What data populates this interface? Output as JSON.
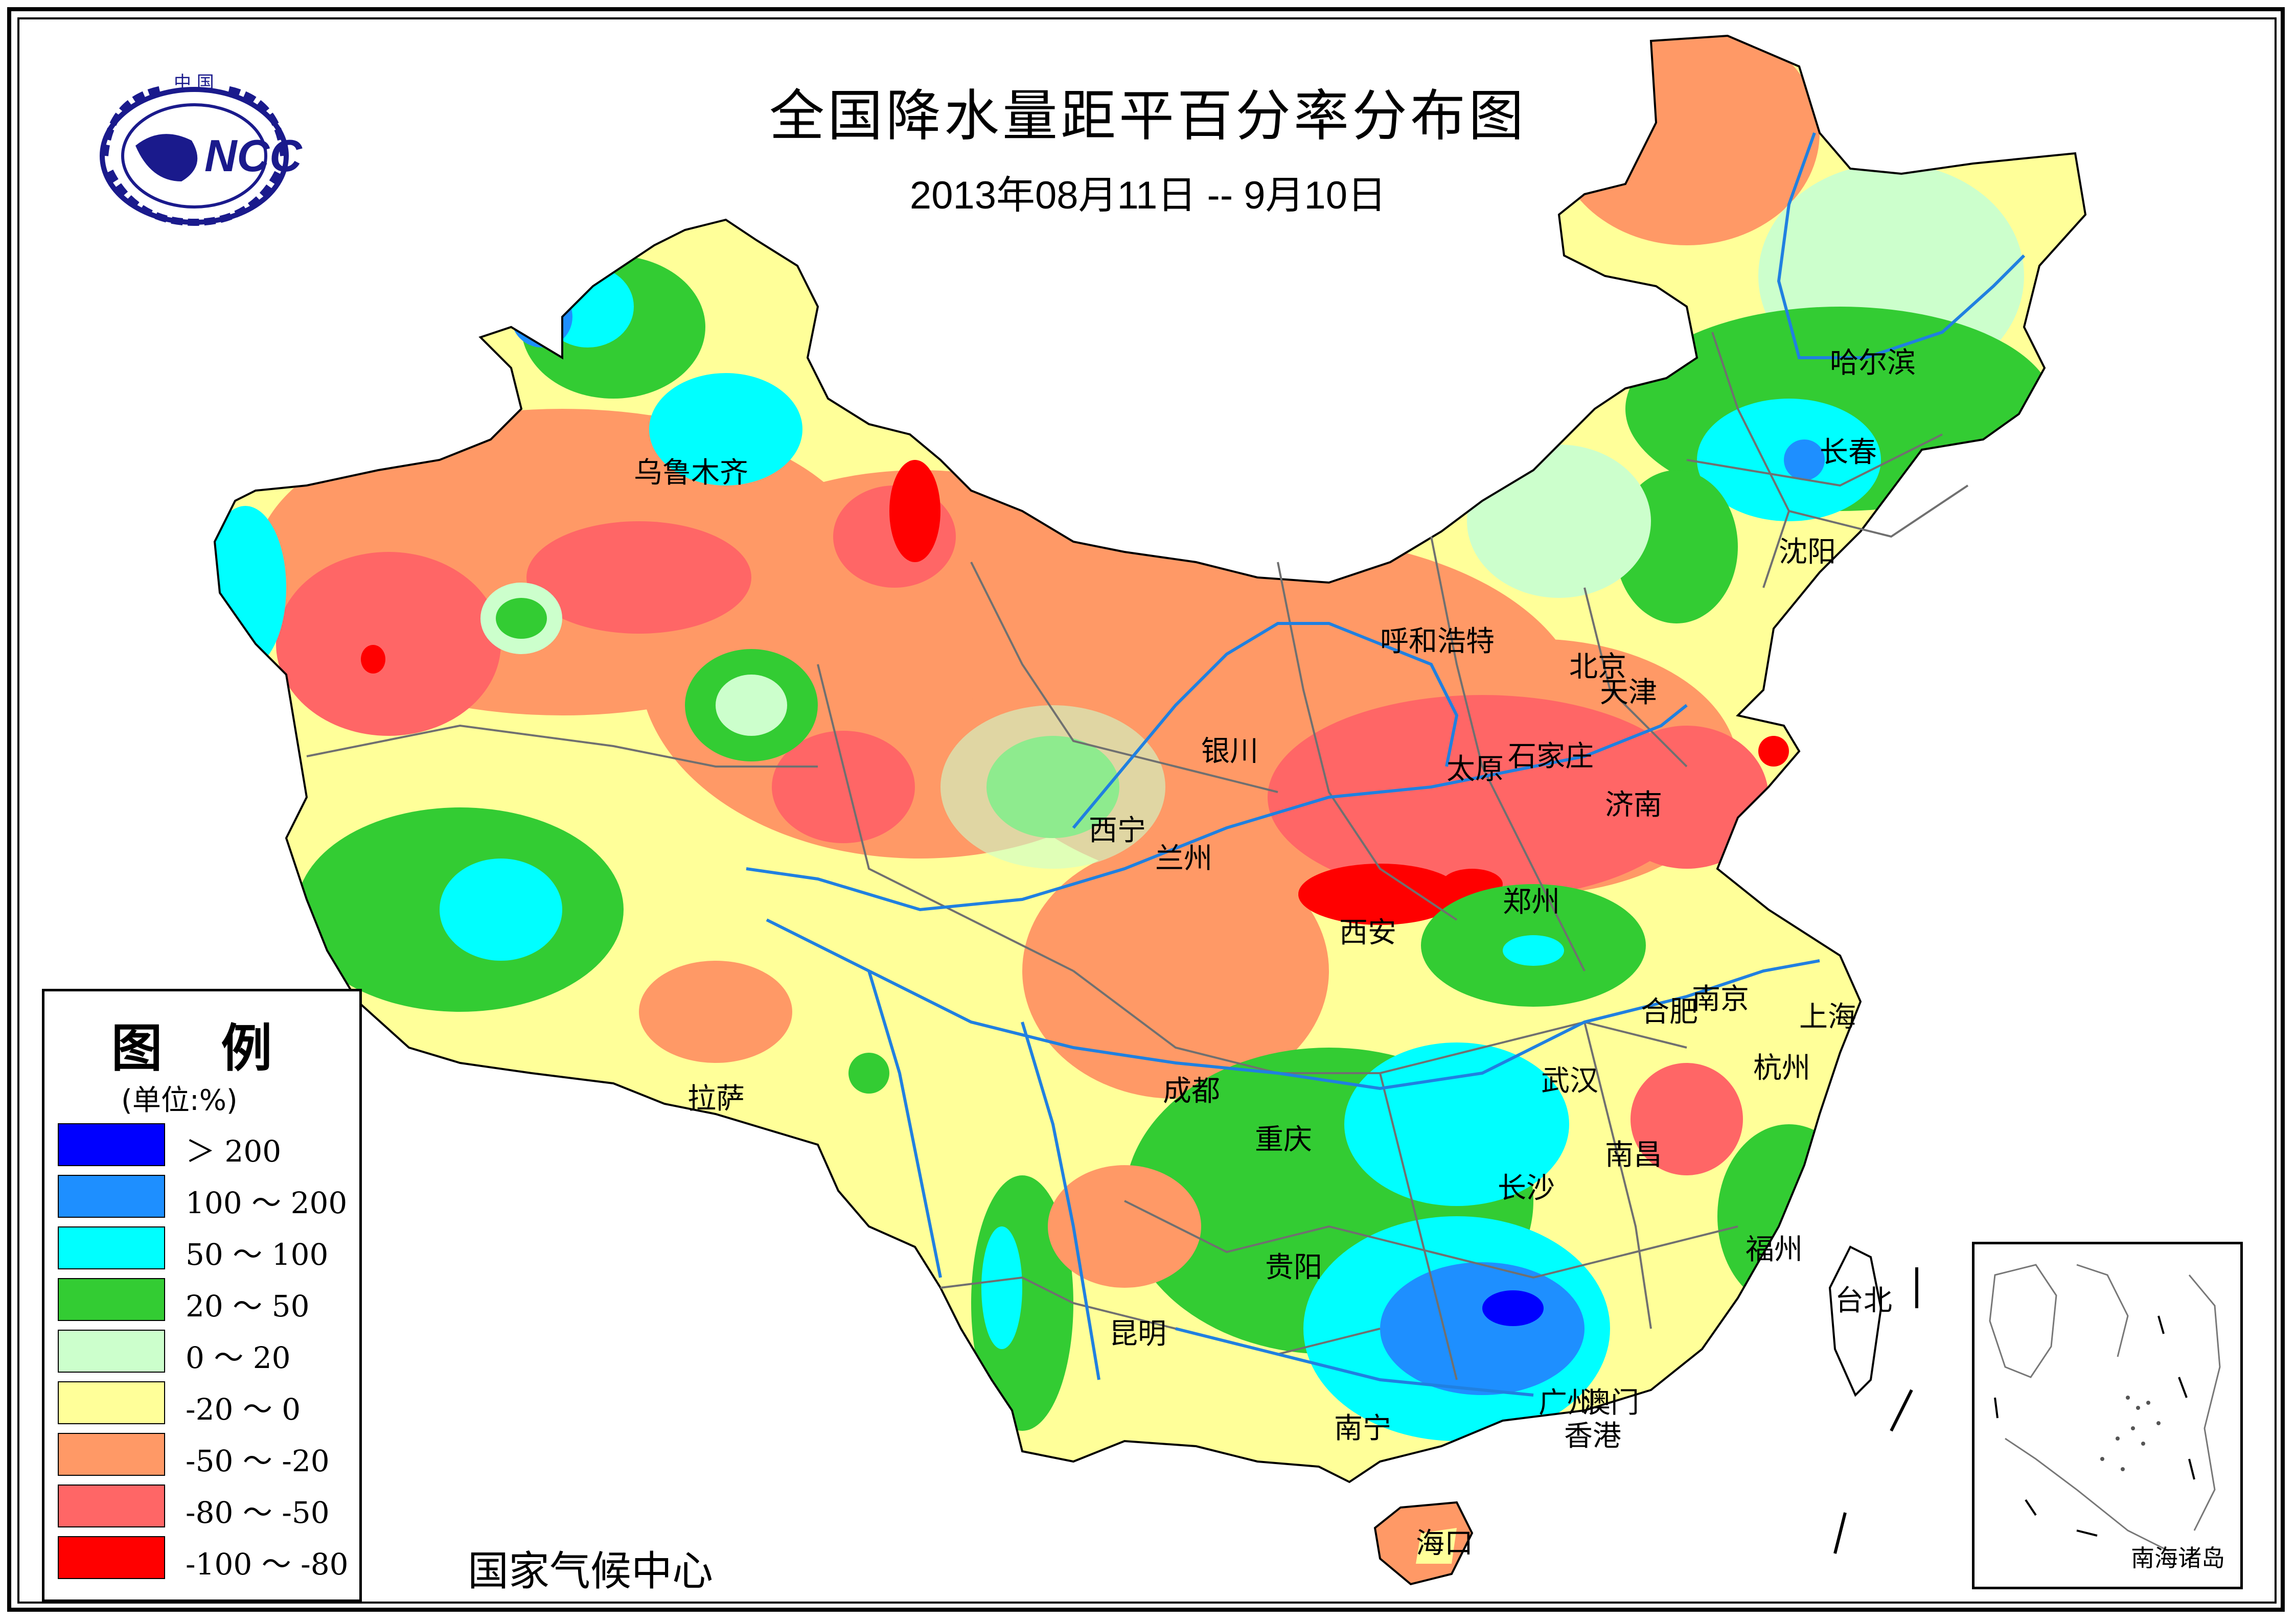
{
  "header": {
    "title": "全国降水量距平百分率分布图",
    "date_range": "2013年08月11日 -- 9月10日"
  },
  "logo": {
    "org_label_top": "中 国",
    "acronym": "NCC",
    "icon": "ncc-emblem-icon"
  },
  "legend": {
    "title": "图 例",
    "unit": "(单位:%)",
    "items": [
      {
        "label": "＞ 200",
        "color": "#0000ff"
      },
      {
        "label": "100 ～ 200",
        "color": "#1e8fff"
      },
      {
        "label": "50 ～ 100",
        "color": "#00ffff"
      },
      {
        "label": "20 ～ 50",
        "color": "#33cc33"
      },
      {
        "label": "0 ～ 20",
        "color": "#ccffcc"
      },
      {
        "label": "-20 ～ 0",
        "color": "#ffff99"
      },
      {
        "label": "-50 ～ -20",
        "color": "#ff9966"
      },
      {
        "label": "-80 ～ -50",
        "color": "#ff6666"
      },
      {
        "label": "-100 ～ -80",
        "color": "#ff0000"
      }
    ]
  },
  "cities": {
    "urumqi": "乌鲁木齐",
    "harbin": "哈尔滨",
    "changchun": "长春",
    "shenyang": "沈阳",
    "hohhot": "呼和浩特",
    "beijing": "北京",
    "tianjin": "天津",
    "yinchuan": "银川",
    "taiyuan": "太原",
    "shijiazhuang": "石家庄",
    "jinan": "济南",
    "xining": "西宁",
    "lanzhou": "兰州",
    "zhengzhou": "郑州",
    "xian": "西安",
    "hefei": "合肥",
    "nanjing": "南京",
    "shanghai": "上海",
    "lhasa": "拉萨",
    "chengdu": "成都",
    "wuhan": "武汉",
    "hangzhou": "杭州",
    "chongqing": "重庆",
    "nanchang": "南昌",
    "changsha": "长沙",
    "fuzhou": "福州",
    "guiyang": "贵阳",
    "taipei": "台北",
    "kunming": "昆明",
    "guangzhou": "广州",
    "macao": "澳门",
    "nanning": "南宁",
    "hongkong": "香港",
    "haikou": "海口"
  },
  "footer": {
    "org_name": "国家气候中心"
  },
  "inset": {
    "label": "南海诸岛"
  },
  "colors": {
    "over200": "#0000ff",
    "c100_200": "#1e8fff",
    "c50_100": "#00ffff",
    "c20_50": "#33cc33",
    "c0_20": "#ccffcc",
    "cm20_0": "#ffff99",
    "cm50_m20": "#ff9966",
    "cm80_m50": "#ff6666",
    "cm100_m80": "#ff0000",
    "river": "#2080e0",
    "border": "#707070",
    "logo_blue": "#1a1a8c"
  }
}
